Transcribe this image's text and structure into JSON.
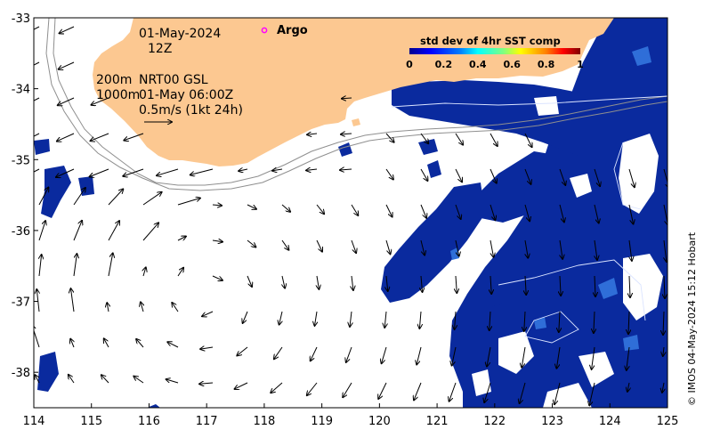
{
  "map": {
    "lon_range": [
      114,
      125
    ],
    "lat_range": [
      -38.5,
      -33
    ],
    "x_ticks": [
      114,
      115,
      116,
      117,
      118,
      119,
      120,
      121,
      122,
      123,
      124,
      125
    ],
    "y_ticks": [
      -33,
      -34,
      -35,
      -36,
      -37,
      -38
    ],
    "x_tick_labels": [
      "114",
      "115",
      "116",
      "117",
      "118",
      "119",
      "120",
      "121",
      "122",
      "123",
      "124",
      "125"
    ],
    "y_tick_labels": [
      "-33",
      "-34",
      "-35",
      "-36",
      "-37",
      "-38"
    ],
    "land_color": "#fcc891",
    "ocean_color": "#ffffff",
    "sst_color": "#0a2a9e"
  },
  "annotations": {
    "date": "01-May-2024",
    "hour": "12Z",
    "depth_200": "200m",
    "depth_1000": "1000m",
    "product": "NRT00 GSL",
    "product_time": "01-May 06:00Z",
    "scale_text": "0.5m/s (1kt 24h)"
  },
  "argo": {
    "label": "Argo",
    "marker_color": "#ff00ff"
  },
  "legend": {
    "title": "std dev of 4hr SST comp",
    "ticks": [
      "0",
      "0.2",
      "0.4",
      "0.6",
      "0.8",
      "1"
    ],
    "colormap": [
      "#00008f",
      "#0000ff",
      "#0080ff",
      "#00ffff",
      "#80ff80",
      "#ffff00",
      "#ff8000",
      "#ff0000",
      "#800000"
    ]
  },
  "credit": "© IMOS 04-May-2024 15:12 Hobart"
}
